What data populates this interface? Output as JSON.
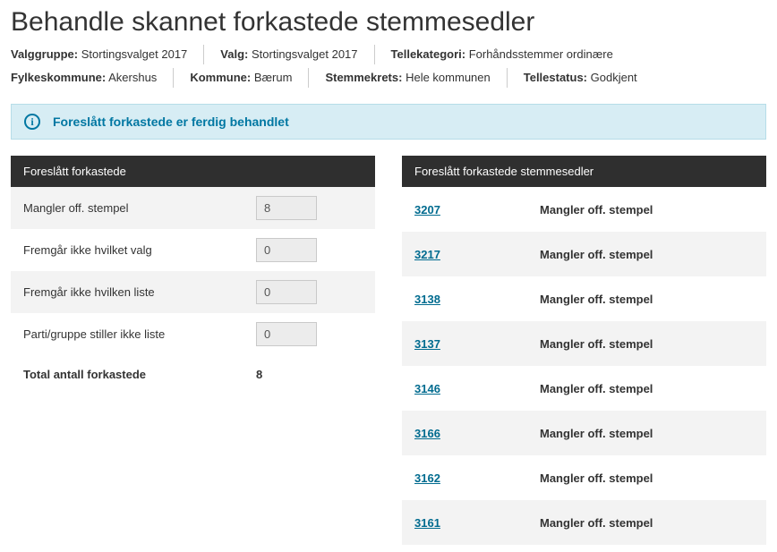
{
  "title": "Behandle skannet forkastede stemmesedler",
  "meta": {
    "row1": [
      {
        "label": "Valggruppe:",
        "value": "Stortingsvalget 2017"
      },
      {
        "label": "Valg:",
        "value": "Stortingsvalget 2017"
      },
      {
        "label": "Tellekategori:",
        "value": "Forhåndsstemmer ordinære"
      }
    ],
    "row2": [
      {
        "label": "Fylkeskommune:",
        "value": "Akershus"
      },
      {
        "label": "Kommune:",
        "value": "Bærum"
      },
      {
        "label": "Stemmekrets:",
        "value": "Hele kommunen"
      },
      {
        "label": "Tellestatus:",
        "value": "Godkjent"
      }
    ]
  },
  "banner": {
    "text": "Foreslått forkastede er ferdig behandlet"
  },
  "summary": {
    "header": "Foreslått forkastede",
    "rows": [
      {
        "label": "Mangler off. stempel",
        "value": "8"
      },
      {
        "label": "Fremgår ikke hvilket valg",
        "value": "0"
      },
      {
        "label": "Fremgår ikke hvilken liste",
        "value": "0"
      },
      {
        "label": "Parti/gruppe stiller ikke liste",
        "value": "0"
      }
    ],
    "total_label": "Total antall forkastede",
    "total_value": "8"
  },
  "list": {
    "header": "Foreslått forkastede stemmesedler",
    "rows": [
      {
        "id": "3207",
        "reason": "Mangler off. stempel"
      },
      {
        "id": "3217",
        "reason": "Mangler off. stempel"
      },
      {
        "id": "3138",
        "reason": "Mangler off. stempel"
      },
      {
        "id": "3137",
        "reason": "Mangler off. stempel"
      },
      {
        "id": "3146",
        "reason": "Mangler off. stempel"
      },
      {
        "id": "3166",
        "reason": "Mangler off. stempel"
      },
      {
        "id": "3162",
        "reason": "Mangler off. stempel"
      },
      {
        "id": "3161",
        "reason": "Mangler off. stempel"
      }
    ]
  }
}
